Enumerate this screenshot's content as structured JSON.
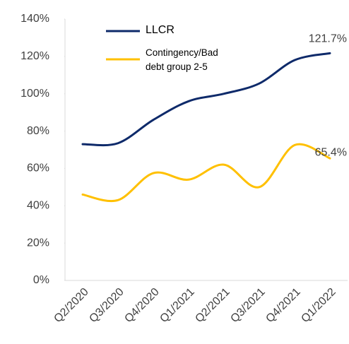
{
  "chart_data": {
    "type": "line",
    "categories": [
      "Q2/2020",
      "Q3/2020",
      "Q4/2020",
      "Q1/2021",
      "Q2/2021",
      "Q3/2021",
      "Q4/2021",
      "Q1/2022"
    ],
    "series": [
      {
        "name": "LLCR",
        "color": "#0e2a6a",
        "values": [
          73,
          73.5,
          86,
          96,
          100,
          105.5,
          118,
          121.7
        ],
        "value_labels": [
          null,
          null,
          null,
          null,
          null,
          null,
          null,
          "121.7%"
        ]
      },
      {
        "name": "Contingency/Bad debt group 2-5",
        "color": "#ffc000",
        "values": [
          46,
          43,
          57.5,
          54,
          62,
          50,
          72.5,
          65.4
        ],
        "value_labels": [
          null,
          null,
          null,
          null,
          null,
          null,
          null,
          "65.4%"
        ]
      }
    ],
    "ylim": [
      0,
      140
    ],
    "yticks": [
      {
        "value": 0,
        "label": "0%"
      },
      {
        "value": 20,
        "label": "20%"
      },
      {
        "value": 40,
        "label": "40%"
      },
      {
        "value": 60,
        "label": "60%"
      },
      {
        "value": 80,
        "label": "80%"
      },
      {
        "value": 100,
        "label": "100%"
      },
      {
        "value": 120,
        "label": "120%"
      },
      {
        "value": 140,
        "label": "140%"
      }
    ],
    "legend": "top-left",
    "grid": false
  }
}
